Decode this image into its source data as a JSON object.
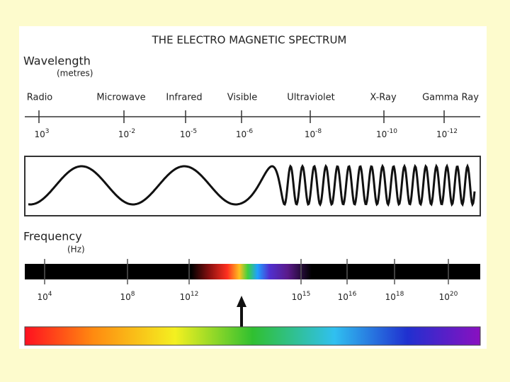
{
  "title": "THE ELECTRO MAGNETIC SPECTRUM",
  "wavelength": {
    "label": "Wavelength",
    "unit": "(metres)",
    "bands": [
      "Radio",
      "Microwave",
      "Infrared",
      "Visible",
      "Ultraviolet",
      "X-Ray",
      "Gamma Ray"
    ],
    "ticks": [
      {
        "base": "10",
        "exp": "3"
      },
      {
        "base": "10",
        "exp": "-2"
      },
      {
        "base": "10",
        "exp": "-5"
      },
      {
        "base": "10",
        "exp": "-6"
      },
      {
        "base": "10",
        "exp": "-8"
      },
      {
        "base": "10",
        "exp": "-10"
      },
      {
        "base": "10",
        "exp": "-12"
      }
    ]
  },
  "frequency": {
    "label": "Frequency",
    "unit": "(Hz)",
    "ticks": [
      {
        "base": "10",
        "exp": "4"
      },
      {
        "base": "10",
        "exp": "8"
      },
      {
        "base": "10",
        "exp": "12"
      },
      {
        "base": "10",
        "exp": "15"
      },
      {
        "base": "10",
        "exp": "16"
      },
      {
        "base": "10",
        "exp": "18"
      },
      {
        "base": "10",
        "exp": "20"
      }
    ]
  }
}
